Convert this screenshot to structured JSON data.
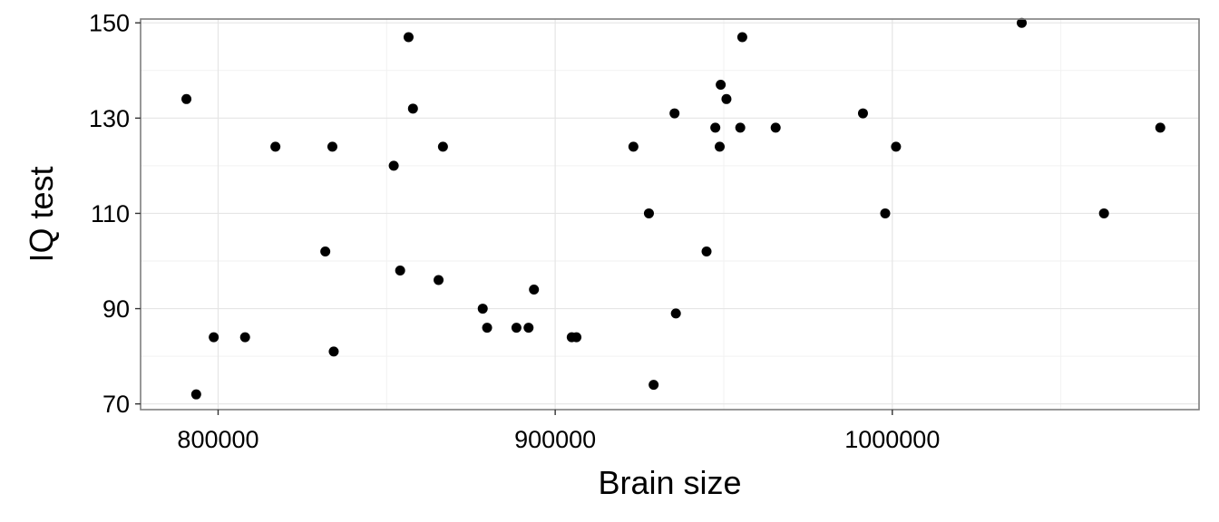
{
  "chart_data": {
    "type": "scatter",
    "title": "",
    "xlabel": "Brain size",
    "ylabel": "IQ test",
    "xlim": [
      777000,
      1091000
    ],
    "ylim": [
      68.8,
      150.8
    ],
    "x_ticks": [
      800000,
      900000,
      1000000
    ],
    "x_tick_labels": [
      "800000",
      "900000",
      "1000000"
    ],
    "x_minor_ticks": [
      850000,
      950000,
      1050000
    ],
    "y_ticks": [
      70,
      90,
      110,
      130,
      150
    ],
    "y_tick_labels": [
      "70",
      "90",
      "110",
      "130",
      "150"
    ],
    "y_minor_ticks": [
      80,
      100,
      120,
      140
    ],
    "grid": true,
    "point_color": "#000000",
    "points": [
      {
        "x": 790600,
        "y": 134
      },
      {
        "x": 793500,
        "y": 72
      },
      {
        "x": 798700,
        "y": 84
      },
      {
        "x": 808000,
        "y": 84
      },
      {
        "x": 817000,
        "y": 124
      },
      {
        "x": 831800,
        "y": 102
      },
      {
        "x": 833900,
        "y": 124
      },
      {
        "x": 834300,
        "y": 81
      },
      {
        "x": 852100,
        "y": 120
      },
      {
        "x": 854000,
        "y": 98
      },
      {
        "x": 856500,
        "y": 147
      },
      {
        "x": 857800,
        "y": 132
      },
      {
        "x": 865400,
        "y": 96
      },
      {
        "x": 866700,
        "y": 124
      },
      {
        "x": 878500,
        "y": 90
      },
      {
        "x": 879800,
        "y": 86
      },
      {
        "x": 888500,
        "y": 86
      },
      {
        "x": 892100,
        "y": 86
      },
      {
        "x": 893700,
        "y": 94
      },
      {
        "x": 904900,
        "y": 84
      },
      {
        "x": 906300,
        "y": 84
      },
      {
        "x": 923200,
        "y": 124
      },
      {
        "x": 927800,
        "y": 110
      },
      {
        "x": 929200,
        "y": 74
      },
      {
        "x": 935400,
        "y": 131
      },
      {
        "x": 935800,
        "y": 89
      },
      {
        "x": 944900,
        "y": 102
      },
      {
        "x": 947500,
        "y": 128
      },
      {
        "x": 948800,
        "y": 124
      },
      {
        "x": 949100,
        "y": 137
      },
      {
        "x": 950800,
        "y": 134
      },
      {
        "x": 954900,
        "y": 128
      },
      {
        "x": 955500,
        "y": 147
      },
      {
        "x": 965400,
        "y": 128
      },
      {
        "x": 991300,
        "y": 131
      },
      {
        "x": 997900,
        "y": 110
      },
      {
        "x": 1001100,
        "y": 124
      },
      {
        "x": 1038400,
        "y": 150
      },
      {
        "x": 1062800,
        "y": 110
      },
      {
        "x": 1079500,
        "y": 128
      }
    ]
  }
}
